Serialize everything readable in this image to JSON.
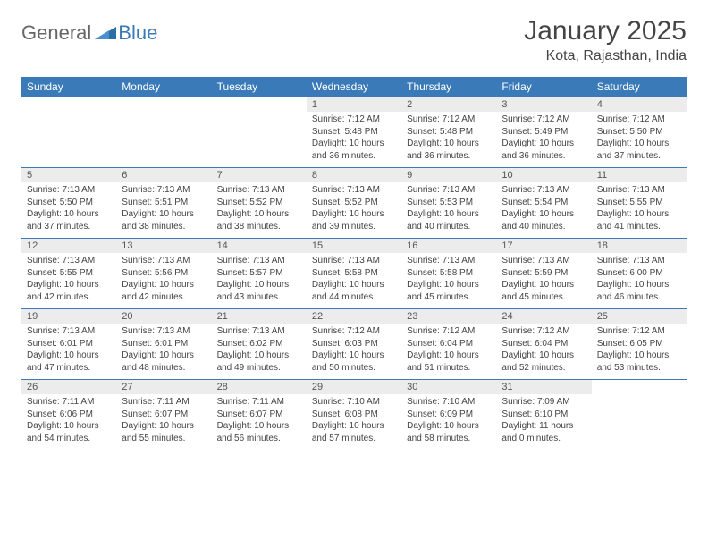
{
  "logo": {
    "general": "General",
    "blue": "Blue"
  },
  "title": "January 2025",
  "location": "Kota, Rajasthan, India",
  "colors": {
    "header_bg": "#3a7ab8",
    "header_text": "#ffffff",
    "daynum_bg": "#ececec",
    "border": "#3a7ab8",
    "body_text": "#444444",
    "logo_gray": "#666666",
    "logo_blue": "#3a7ab8"
  },
  "dayHeaders": [
    "Sunday",
    "Monday",
    "Tuesday",
    "Wednesday",
    "Thursday",
    "Friday",
    "Saturday"
  ],
  "weeks": [
    [
      null,
      null,
      null,
      {
        "n": "1",
        "sr": "7:12 AM",
        "ss": "5:48 PM",
        "dl": "10 hours and 36 minutes."
      },
      {
        "n": "2",
        "sr": "7:12 AM",
        "ss": "5:48 PM",
        "dl": "10 hours and 36 minutes."
      },
      {
        "n": "3",
        "sr": "7:12 AM",
        "ss": "5:49 PM",
        "dl": "10 hours and 36 minutes."
      },
      {
        "n": "4",
        "sr": "7:12 AM",
        "ss": "5:50 PM",
        "dl": "10 hours and 37 minutes."
      }
    ],
    [
      {
        "n": "5",
        "sr": "7:13 AM",
        "ss": "5:50 PM",
        "dl": "10 hours and 37 minutes."
      },
      {
        "n": "6",
        "sr": "7:13 AM",
        "ss": "5:51 PM",
        "dl": "10 hours and 38 minutes."
      },
      {
        "n": "7",
        "sr": "7:13 AM",
        "ss": "5:52 PM",
        "dl": "10 hours and 38 minutes."
      },
      {
        "n": "8",
        "sr": "7:13 AM",
        "ss": "5:52 PM",
        "dl": "10 hours and 39 minutes."
      },
      {
        "n": "9",
        "sr": "7:13 AM",
        "ss": "5:53 PM",
        "dl": "10 hours and 40 minutes."
      },
      {
        "n": "10",
        "sr": "7:13 AM",
        "ss": "5:54 PM",
        "dl": "10 hours and 40 minutes."
      },
      {
        "n": "11",
        "sr": "7:13 AM",
        "ss": "5:55 PM",
        "dl": "10 hours and 41 minutes."
      }
    ],
    [
      {
        "n": "12",
        "sr": "7:13 AM",
        "ss": "5:55 PM",
        "dl": "10 hours and 42 minutes."
      },
      {
        "n": "13",
        "sr": "7:13 AM",
        "ss": "5:56 PM",
        "dl": "10 hours and 42 minutes."
      },
      {
        "n": "14",
        "sr": "7:13 AM",
        "ss": "5:57 PM",
        "dl": "10 hours and 43 minutes."
      },
      {
        "n": "15",
        "sr": "7:13 AM",
        "ss": "5:58 PM",
        "dl": "10 hours and 44 minutes."
      },
      {
        "n": "16",
        "sr": "7:13 AM",
        "ss": "5:58 PM",
        "dl": "10 hours and 45 minutes."
      },
      {
        "n": "17",
        "sr": "7:13 AM",
        "ss": "5:59 PM",
        "dl": "10 hours and 45 minutes."
      },
      {
        "n": "18",
        "sr": "7:13 AM",
        "ss": "6:00 PM",
        "dl": "10 hours and 46 minutes."
      }
    ],
    [
      {
        "n": "19",
        "sr": "7:13 AM",
        "ss": "6:01 PM",
        "dl": "10 hours and 47 minutes."
      },
      {
        "n": "20",
        "sr": "7:13 AM",
        "ss": "6:01 PM",
        "dl": "10 hours and 48 minutes."
      },
      {
        "n": "21",
        "sr": "7:13 AM",
        "ss": "6:02 PM",
        "dl": "10 hours and 49 minutes."
      },
      {
        "n": "22",
        "sr": "7:12 AM",
        "ss": "6:03 PM",
        "dl": "10 hours and 50 minutes."
      },
      {
        "n": "23",
        "sr": "7:12 AM",
        "ss": "6:04 PM",
        "dl": "10 hours and 51 minutes."
      },
      {
        "n": "24",
        "sr": "7:12 AM",
        "ss": "6:04 PM",
        "dl": "10 hours and 52 minutes."
      },
      {
        "n": "25",
        "sr": "7:12 AM",
        "ss": "6:05 PM",
        "dl": "10 hours and 53 minutes."
      }
    ],
    [
      {
        "n": "26",
        "sr": "7:11 AM",
        "ss": "6:06 PM",
        "dl": "10 hours and 54 minutes."
      },
      {
        "n": "27",
        "sr": "7:11 AM",
        "ss": "6:07 PM",
        "dl": "10 hours and 55 minutes."
      },
      {
        "n": "28",
        "sr": "7:11 AM",
        "ss": "6:07 PM",
        "dl": "10 hours and 56 minutes."
      },
      {
        "n": "29",
        "sr": "7:10 AM",
        "ss": "6:08 PM",
        "dl": "10 hours and 57 minutes."
      },
      {
        "n": "30",
        "sr": "7:10 AM",
        "ss": "6:09 PM",
        "dl": "10 hours and 58 minutes."
      },
      {
        "n": "31",
        "sr": "7:09 AM",
        "ss": "6:10 PM",
        "dl": "11 hours and 0 minutes."
      },
      null
    ]
  ],
  "labels": {
    "sunrise": "Sunrise: ",
    "sunset": "Sunset: ",
    "daylight": "Daylight: "
  }
}
